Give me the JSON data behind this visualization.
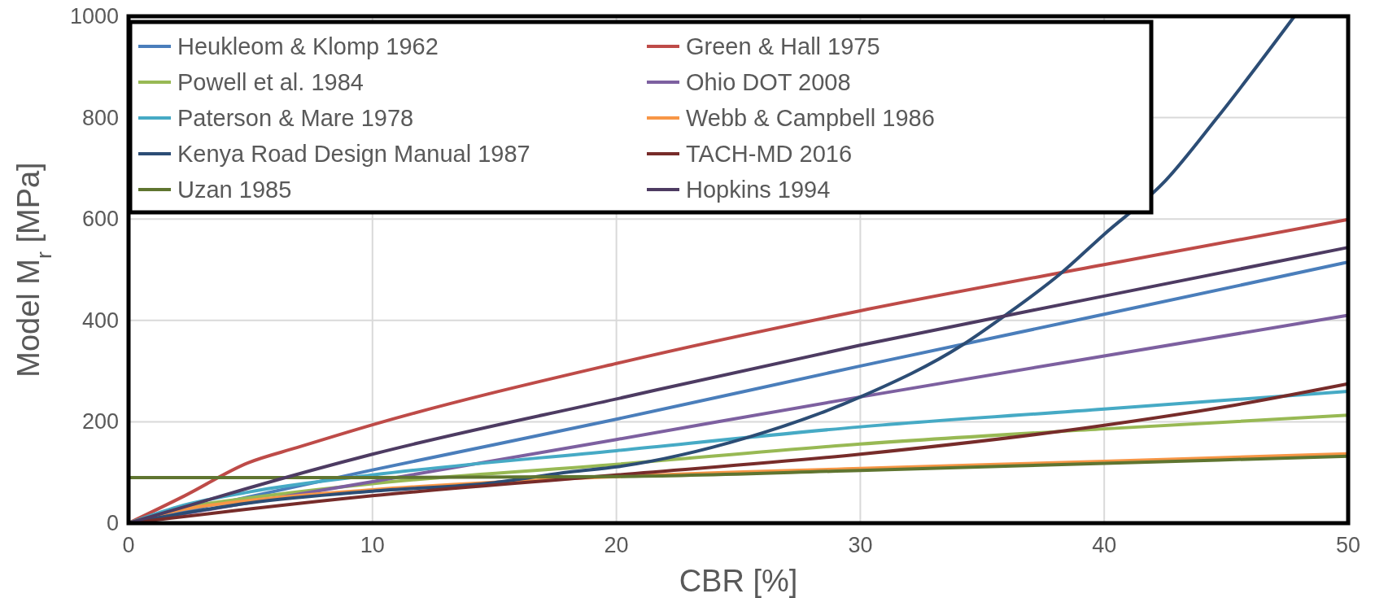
{
  "chart_data": {
    "type": "line",
    "xlabel": "CBR [%]",
    "ylabel": "Model M$_{r}$ [MPa]",
    "xlim": [
      0,
      50
    ],
    "xticks": [
      0,
      10,
      20,
      30,
      40,
      50
    ],
    "ylim": [
      0,
      1000
    ],
    "yticks": [
      0,
      200,
      400,
      600,
      800,
      1000
    ],
    "grid": true,
    "legend": "top left",
    "marker": "none",
    "line_style": "solid",
    "series": [
      {
        "name": "Heukleom & Klomp 1962",
        "color": "#4a7ebb",
        "x": [
          0,
          10,
          20,
          30,
          40,
          50
        ],
        "values": [
          0,
          105,
          205,
          310,
          412,
          515
        ]
      },
      {
        "name": "Green & Hall 1975",
        "color": "#be4b48",
        "x": [
          0,
          2.3,
          4.9,
          6.9,
          10,
          20,
          30,
          40,
          50
        ],
        "values": [
          0,
          54,
          119,
          149,
          194,
          315,
          419,
          510,
          599
        ]
      },
      {
        "name": "Powell et al. 1984",
        "color": "#98b954",
        "x": [
          0,
          2,
          5,
          10,
          20,
          30,
          40,
          50
        ],
        "values": [
          0,
          28,
          50,
          78,
          116,
          156,
          186,
          213
        ]
      },
      {
        "name": "Ohio DOT 2008",
        "color": "#7d60a0",
        "x": [
          0,
          10,
          20,
          30,
          40,
          50
        ],
        "values": [
          0,
          82,
          165,
          249,
          330,
          410
        ]
      },
      {
        "name": "Paterson & Mare 1978",
        "color": "#46aac5",
        "x": [
          0,
          2,
          5,
          10,
          20,
          30,
          40,
          50
        ],
        "values": [
          0,
          32,
          62,
          95,
          143,
          190,
          225,
          260
        ]
      },
      {
        "name": "Webb & Campbell 1986",
        "color": "#f79646",
        "x": [
          0,
          2,
          5,
          10,
          20,
          30,
          40,
          50
        ],
        "values": [
          0,
          25,
          45,
          66,
          92,
          108,
          122,
          137
        ]
      },
      {
        "name": "Kenya Road Design Manual 1987",
        "color": "#2c4d75",
        "x": [
          0,
          5,
          10,
          15,
          18.1,
          20,
          25.3,
          30,
          34.2,
          36,
          38.2,
          40,
          42.5,
          44.6,
          47.8
        ],
        "values": [
          0,
          40,
          63,
          80,
          101,
          111,
          168,
          249,
          352,
          412,
          492,
          570,
          675,
          798,
          1000
        ]
      },
      {
        "name": "TACH-MD 2016",
        "color": "#772c2a",
        "x": [
          0,
          10,
          20,
          30,
          40,
          45,
          50
        ],
        "values": [
          0,
          54,
          95,
          136,
          193,
          230,
          275
        ]
      },
      {
        "name": "Uzan 1985",
        "color": "#5f7530",
        "x": [
          0,
          10,
          20,
          30,
          40,
          50
        ],
        "values": [
          90,
          90,
          92,
          104,
          118,
          132
        ]
      },
      {
        "name": "Hopkins 1994",
        "color": "#4d3b62",
        "x": [
          0,
          2.5,
          4.9,
          10,
          20,
          30,
          40,
          50
        ],
        "values": [
          0,
          35,
          69,
          136,
          245,
          351,
          448,
          544
        ]
      }
    ]
  }
}
